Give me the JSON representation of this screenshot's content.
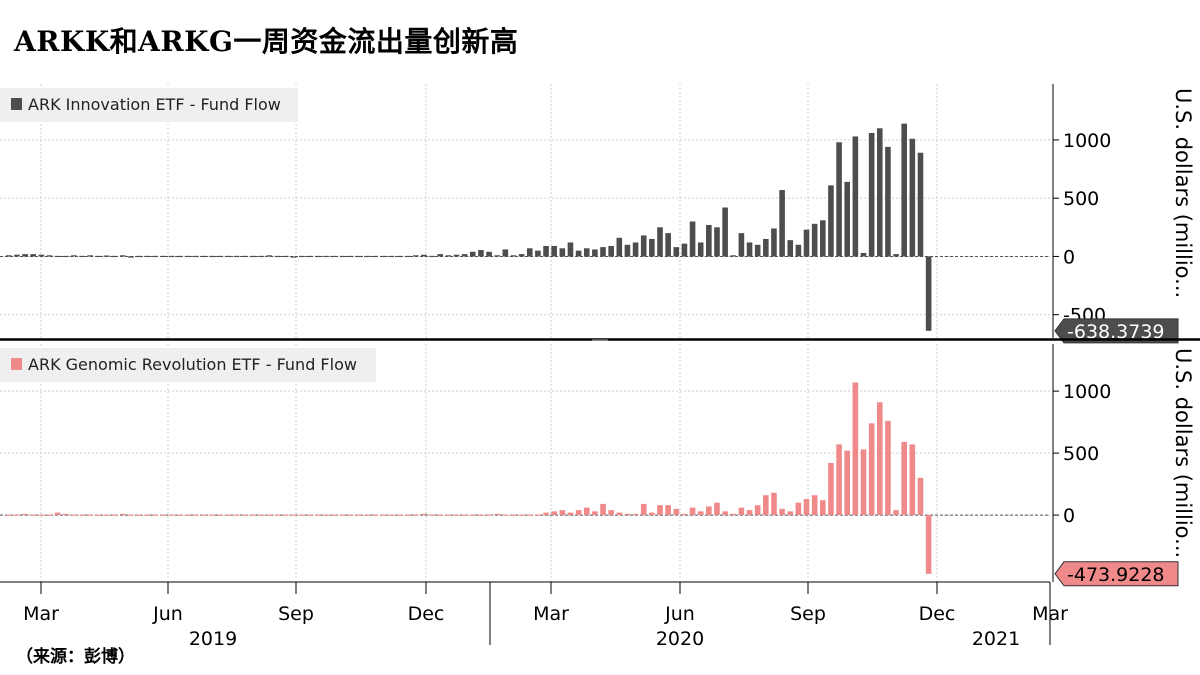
{
  "title": "ARKK和ARKG一周资金流出量创新高",
  "source": "（来源：彭博）",
  "colors": {
    "arkk": "#4d4d4d",
    "arkg": "#f08a8a",
    "grid": "#d0d0d0",
    "axis": "#000000"
  },
  "chart_data": [
    {
      "type": "bar",
      "legend": "ARK Innovation ETF - Fund Flow",
      "ylabel": "U.S. dollars (millio...",
      "ylim": [
        -700,
        1480
      ],
      "yticks": [
        -500,
        0,
        500,
        1000
      ],
      "last_value_label": "-638.3739",
      "grid": true,
      "values": [
        10,
        15,
        20,
        20,
        15,
        10,
        5,
        5,
        10,
        5,
        10,
        5,
        8,
        5,
        10,
        -10,
        5,
        5,
        5,
        5,
        5,
        5,
        5,
        5,
        5,
        5,
        5,
        5,
        5,
        5,
        5,
        5,
        10,
        5,
        5,
        -5,
        5,
        5,
        5,
        5,
        5,
        5,
        5,
        5,
        5,
        5,
        5,
        5,
        5,
        5,
        10,
        15,
        5,
        20,
        10,
        15,
        20,
        40,
        55,
        40,
        10,
        60,
        10,
        20,
        70,
        50,
        90,
        90,
        70,
        120,
        50,
        70,
        60,
        80,
        90,
        160,
        100,
        120,
        180,
        150,
        250,
        200,
        80,
        110,
        300,
        120,
        270,
        250,
        420,
        10,
        200,
        120,
        100,
        150,
        240,
        570,
        140,
        100,
        230,
        280,
        310,
        610,
        980,
        640,
        1030,
        30,
        1060,
        1100,
        940,
        20,
        1140,
        1010,
        890,
        -638.3739
      ]
    },
    {
      "type": "bar",
      "legend": "ARK Genomic Revolution ETF - Fund Flow",
      "ylabel": "U.S. dollars (millio...",
      "ylim": [
        -540,
        1380
      ],
      "yticks": [
        0,
        500,
        1000
      ],
      "last_value_label": "-473.9228",
      "grid": true,
      "values": [
        5,
        5,
        10,
        5,
        5,
        5,
        20,
        10,
        5,
        5,
        5,
        5,
        5,
        5,
        10,
        5,
        5,
        5,
        5,
        5,
        5,
        5,
        5,
        5,
        5,
        5,
        5,
        5,
        5,
        5,
        5,
        5,
        5,
        5,
        5,
        5,
        5,
        5,
        5,
        5,
        5,
        5,
        5,
        5,
        5,
        5,
        5,
        5,
        5,
        5,
        5,
        10,
        5,
        5,
        5,
        5,
        5,
        5,
        5,
        5,
        10,
        5,
        5,
        5,
        5,
        5,
        20,
        30,
        40,
        20,
        40,
        60,
        30,
        90,
        40,
        20,
        10,
        10,
        90,
        20,
        80,
        80,
        50,
        10,
        60,
        30,
        70,
        100,
        30,
        10,
        60,
        40,
        80,
        160,
        180,
        50,
        30,
        100,
        130,
        160,
        120,
        420,
        570,
        520,
        1070,
        530,
        740,
        910,
        760,
        40,
        590,
        570,
        300,
        -473.9228
      ]
    }
  ],
  "x_axis": {
    "months": [
      "Mar",
      "Jun",
      "Sep",
      "Dec",
      "Mar",
      "Jun",
      "Sep",
      "Dec",
      "Mar"
    ],
    "years": [
      "2019",
      "2020",
      "2021"
    ]
  }
}
